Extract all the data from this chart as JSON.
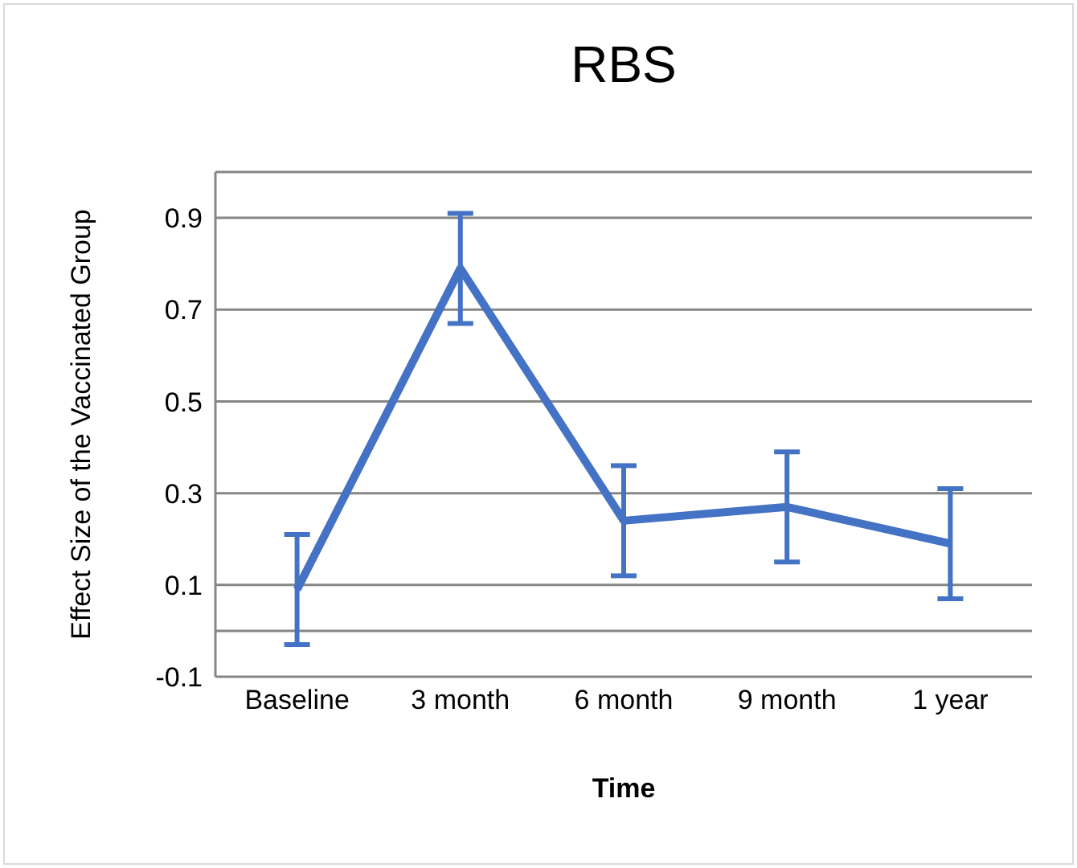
{
  "chart_data": {
    "type": "line",
    "title": "RBS",
    "xlabel": "Time",
    "ylabel": "Effect Size of the Vaccinated Group",
    "categories": [
      "Baseline",
      "3 month",
      "6 month",
      "9 month",
      "1 year"
    ],
    "series": [
      {
        "color": "#4472c4",
        "values": [
          0.09,
          0.79,
          0.24,
          0.27,
          0.19
        ],
        "errors": [
          0.12,
          0.12,
          0.12,
          0.12,
          0.12
        ]
      }
    ],
    "ylim": [
      -0.1,
      1.0
    ],
    "yticks": [
      -0.1,
      {
        "value": 0,
        "label": null
      },
      0.1,
      0.3,
      0.5,
      0.7,
      0.9
    ],
    "grid": "y",
    "marker": "none",
    "line_style": "solid"
  }
}
